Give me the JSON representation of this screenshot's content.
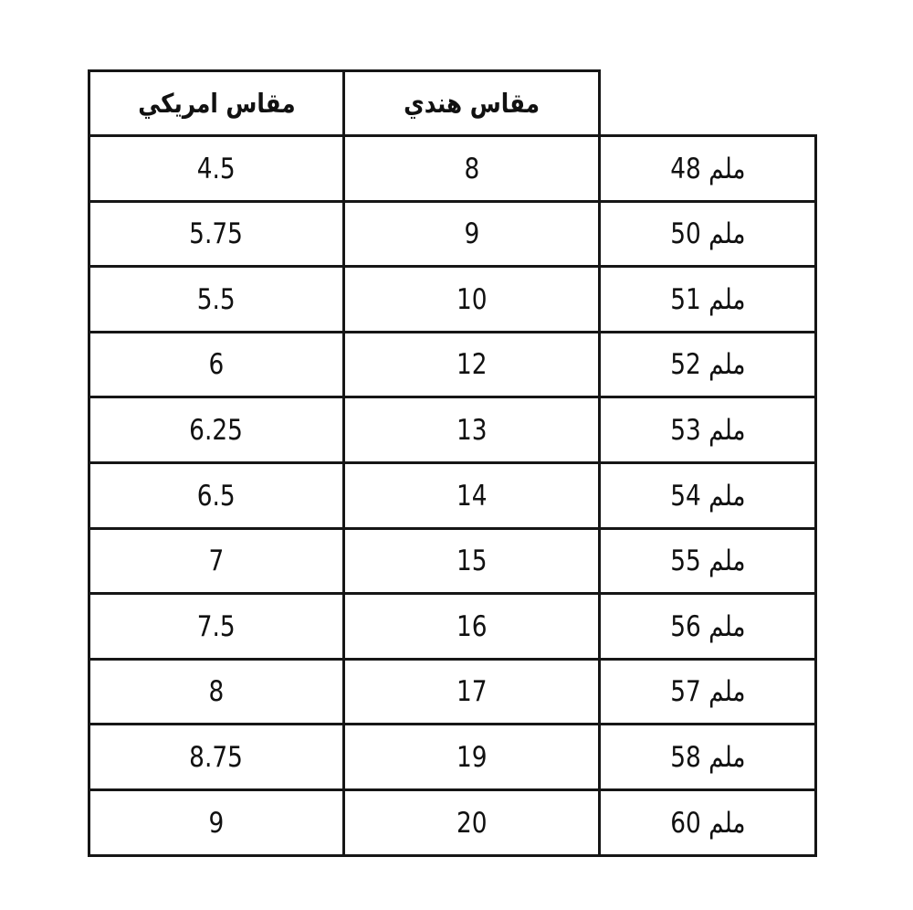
{
  "table": {
    "headers": {
      "us_size": "مقاس امريكي",
      "indian_size": "مقاس هندي",
      "mm": ""
    },
    "rows": [
      {
        "mm": "ملم 48",
        "indian": "8",
        "us": "4.5"
      },
      {
        "mm": "ملم 50",
        "indian": "9",
        "us": "5.75"
      },
      {
        "mm": "ملم 51",
        "indian": "10",
        "us": "5.5"
      },
      {
        "mm": "ملم 52",
        "indian": "12",
        "us": "6"
      },
      {
        "mm": "ملم 53",
        "indian": "13",
        "us": "6.25"
      },
      {
        "mm": "ملم 54",
        "indian": "14",
        "us": "6.5"
      },
      {
        "mm": "ملم 55",
        "indian": "15",
        "us": "7"
      },
      {
        "mm": "ملم 56",
        "indian": "16",
        "us": "7.5"
      },
      {
        "mm": "ملم 57",
        "indian": "17",
        "us": "8"
      },
      {
        "mm": "ملم 58",
        "indian": "19",
        "us": "8.75"
      },
      {
        "mm": "ملم 60",
        "indian": "20",
        "us": "9"
      }
    ]
  }
}
